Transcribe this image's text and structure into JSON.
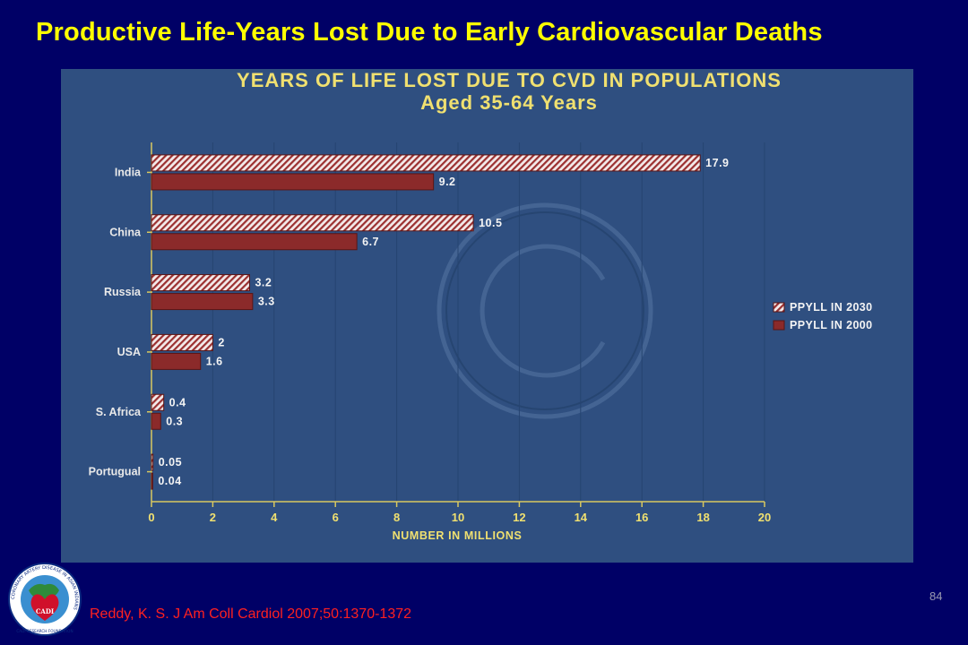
{
  "slide": {
    "title": "Productive Life-Years Lost Due to Early Cardiovascular Deaths",
    "citation": "Reddy, K. S. J Am Coll Cardiol 2007;50:1370-1372",
    "page_number": "84",
    "logo": {
      "text_ring": "CORONARY ARTERY DISEASE IN ASIAN INDIANS",
      "text_bottom": "CADI RESEARCH FOUNDATION",
      "text_center": "CADI"
    }
  },
  "colors": {
    "background": "#000066",
    "title": "#ffff00",
    "chart_panel": "#2f4f80",
    "bar_2000": "#8b2a2a",
    "bar_2030_hatch": "#9b3030",
    "citation": "#ff2020"
  },
  "chart_data": {
    "type": "bar",
    "orientation": "horizontal",
    "title": "YEARS OF LIFE LOST DUE TO CVD IN POPULATIONS",
    "subtitle": "Aged 35-64 Years",
    "xlabel": "NUMBER IN MILLIONS",
    "ylabel": "",
    "xlim": [
      0,
      20
    ],
    "x_ticks": [
      "0",
      "2",
      "4",
      "6",
      "8",
      "10",
      "12",
      "14",
      "16",
      "18",
      "20"
    ],
    "categories": [
      "India",
      "China",
      "Russia",
      "USA",
      "S. Africa",
      "Portugual"
    ],
    "series": [
      {
        "name": "PPYLL IN 2030",
        "values": [
          17.9,
          10.5,
          3.2,
          2,
          0.4,
          0.05
        ],
        "labels": [
          "17.9",
          "10.5",
          "3.2",
          "2",
          "0.4",
          "0.05"
        ],
        "pattern": "hatched"
      },
      {
        "name": "PPYLL IN 2000",
        "values": [
          9.2,
          6.7,
          3.3,
          1.6,
          0.3,
          0.04
        ],
        "labels": [
          "9.2",
          "6.7",
          "3.3",
          "1.6",
          "0.3",
          "0.04"
        ],
        "pattern": "solid"
      }
    ],
    "grid": true,
    "legend_position": "right"
  }
}
